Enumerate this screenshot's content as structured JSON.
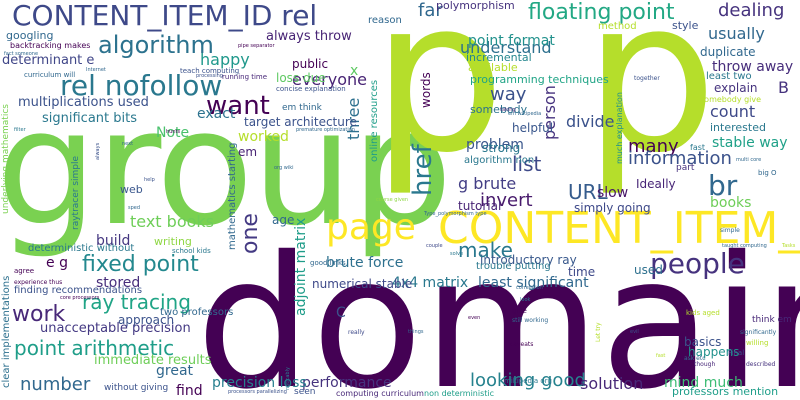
{
  "words": [
    {
      "text": "domain",
      "color": "#440154"
    },
    {
      "text": "group",
      "color": "#7ad151"
    },
    {
      "text": "p",
      "color": "#b5de2b"
    },
    {
      "text": "p",
      "color": "#b5de2b"
    },
    {
      "text": "page",
      "color": "#fde725"
    },
    {
      "text": "CONTENT_ITEM_ID",
      "color": "#fde725"
    },
    {
      "text": "CONTENT_ITEM_ID rel",
      "color": "#3e4989"
    },
    {
      "text": "rel nofollow",
      "color": "#2a788e"
    },
    {
      "text": "algorithm",
      "color": "#2c728e"
    },
    {
      "text": "want",
      "color": "#440154"
    },
    {
      "text": "people",
      "color": "#46327e"
    },
    {
      "text": "br",
      "color": "#31688e"
    },
    {
      "text": "href",
      "color": "#2a788e"
    },
    {
      "text": "fixed point",
      "color": "#23888e"
    },
    {
      "text": "floating point",
      "color": "#22a884"
    },
    {
      "text": "point arithmetic",
      "color": "#1f9e89"
    },
    {
      "text": "work",
      "color": "#482878"
    },
    {
      "text": "ray tracing",
      "color": "#20a486"
    },
    {
      "text": "number",
      "color": "#31688e"
    },
    {
      "text": "list",
      "color": "#3e4989"
    },
    {
      "text": "URL",
      "color": "#365c8d"
    },
    {
      "text": "make",
      "color": "#2a788e"
    },
    {
      "text": "looking good",
      "color": "#26828e"
    },
    {
      "text": "text books",
      "color": "#6ece58"
    },
    {
      "text": "one",
      "color": "#443a83"
    },
    {
      "text": "many",
      "color": "#440154"
    },
    {
      "text": "information",
      "color": "#3b528b"
    },
    {
      "text": "g brute",
      "color": "#433e85"
    },
    {
      "text": "invert",
      "color": "#481a6c"
    },
    {
      "text": "understand",
      "color": "#2d708e"
    },
    {
      "text": "far",
      "color": "#31688e"
    },
    {
      "text": "dealing",
      "color": "#46337e"
    },
    {
      "text": "usually",
      "color": "#31688e"
    },
    {
      "text": "throw away",
      "color": "#472d7b"
    },
    {
      "text": "point format",
      "color": "#21918c"
    },
    {
      "text": "way",
      "color": "#3b528b"
    },
    {
      "text": "person",
      "color": "#46327e"
    },
    {
      "text": "divide",
      "color": "#3b528b"
    },
    {
      "text": "count",
      "color": "#3e4989"
    },
    {
      "text": "everyone",
      "color": "#482475"
    },
    {
      "text": "happy",
      "color": "#1f988b"
    },
    {
      "text": "exact",
      "color": "#2c728e"
    },
    {
      "text": "want",
      "color": "#440154"
    },
    {
      "text": "problem",
      "color": "#39568c"
    },
    {
      "text": "slow",
      "color": "#481668"
    },
    {
      "text": "books",
      "color": "#6ece58"
    },
    {
      "text": "stable way",
      "color": "#1fa188"
    },
    {
      "text": "solution",
      "color": "#482878"
    },
    {
      "text": "mind much",
      "color": "#3dbc74"
    },
    {
      "text": "performance",
      "color": "#46337e"
    },
    {
      "text": "precision loss",
      "color": "#277f8e"
    },
    {
      "text": "stored",
      "color": "#472d7b"
    },
    {
      "text": "brute force",
      "color": "#2d708e"
    },
    {
      "text": "4x4 matrix",
      "color": "#2a788e"
    },
    {
      "text": "introductory ray",
      "color": "#38588c"
    },
    {
      "text": "least significant",
      "color": "#31688e"
    },
    {
      "text": "simply going",
      "color": "#3e4989"
    },
    {
      "text": "Ideally",
      "color": "#482677"
    },
    {
      "text": "build",
      "color": "#453781"
    },
    {
      "text": "e g",
      "color": "#440154"
    },
    {
      "text": "adjoint matrix",
      "color": "#1e9c89"
    },
    {
      "text": "three",
      "color": "#2d708e"
    },
    {
      "text": "x",
      "color": "#5ec962"
    },
    {
      "text": "Note",
      "color": "#4ac16d"
    },
    {
      "text": "great",
      "color": "#31688e"
    },
    {
      "text": "find",
      "color": "#440154"
    },
    {
      "text": "immediate results",
      "color": "#6ece58"
    },
    {
      "text": "unacceptable precision",
      "color": "#443983"
    },
    {
      "text": "multiplications used",
      "color": "#3b528b"
    },
    {
      "text": "significant bits",
      "color": "#2a788e"
    },
    {
      "text": "determinant e",
      "color": "#404688"
    },
    {
      "text": "algorithm non",
      "color": "#2a788e"
    },
    {
      "text": "always throw",
      "color": "#482475"
    },
    {
      "text": "public",
      "color": "#440154"
    },
    {
      "text": "loss due",
      "color": "#5ec962"
    },
    {
      "text": "target architecture",
      "color": "#3b528b"
    },
    {
      "text": "worked",
      "color": "#b5de2b"
    },
    {
      "text": "age",
      "color": "#31688e"
    },
    {
      "text": "tutorial",
      "color": "#482475"
    },
    {
      "text": "helpful",
      "color": "#39568c"
    },
    {
      "text": "strong",
      "color": "#2a788e"
    },
    {
      "text": "time",
      "color": "#3e4989"
    },
    {
      "text": "used",
      "color": "#2d708e"
    },
    {
      "text": "basics",
      "color": "#3b528b"
    },
    {
      "text": "happens",
      "color": "#21918c"
    },
    {
      "text": "professors mention",
      "color": "#1f9e89"
    },
    {
      "text": "B",
      "color": "#46327e"
    },
    {
      "text": "explain",
      "color": "#46337e"
    },
    {
      "text": "interested",
      "color": "#2a788e"
    },
    {
      "text": "duplicate",
      "color": "#31688e"
    },
    {
      "text": "style",
      "color": "#3b528b"
    },
    {
      "text": "method",
      "color": "#b5de2b"
    },
    {
      "text": "least two",
      "color": "#2a788e"
    },
    {
      "text": "programming techniques",
      "color": "#20a486"
    },
    {
      "text": "incremental",
      "color": "#24868e"
    },
    {
      "text": "available",
      "color": "#b5de2b"
    },
    {
      "text": "polymorphism",
      "color": "#46337e"
    },
    {
      "text": "reason",
      "color": "#31688e"
    },
    {
      "text": "somebody",
      "color": "#2c728e"
    },
    {
      "text": "online resources",
      "color": "#1f9e89"
    },
    {
      "text": "words",
      "color": "#440154"
    },
    {
      "text": "raytracer simple",
      "color": "#2a788e"
    },
    {
      "text": "web",
      "color": "#39568c"
    },
    {
      "text": "writing",
      "color": "#8fd744"
    },
    {
      "text": "mathematics starting",
      "color": "#31688e"
    },
    {
      "text": "em",
      "color": "#482475"
    },
    {
      "text": "deterministic without",
      "color": "#2a788e"
    },
    {
      "text": "finding recommendations",
      "color": "#3b528b"
    },
    {
      "text": "two professors",
      "color": "#31688e"
    },
    {
      "text": "approach",
      "color": "#3b528b"
    },
    {
      "text": "numerical stable",
      "color": "#3e4989"
    },
    {
      "text": "C",
      "color": "#3b528b"
    },
    {
      "text": "trouble putting",
      "color": "#2a788e"
    },
    {
      "text": "clear implementations",
      "color": "#2d708e"
    },
    {
      "text": "underlying mathematics",
      "color": "#7ad151"
    },
    {
      "text": "googling",
      "color": "#31688e"
    },
    {
      "text": "backtracking makes",
      "color": "#440154"
    },
    {
      "text": "curriculum will",
      "color": "#31688e"
    },
    {
      "text": "em think",
      "color": "#31688e"
    },
    {
      "text": "without giving",
      "color": "#3b528b"
    },
    {
      "text": "seen",
      "color": "#3b528b"
    },
    {
      "text": "computing curriculum",
      "color": "#482878"
    },
    {
      "text": "non deterministic",
      "color": "#1f9e89"
    },
    {
      "text": "mikipedia org",
      "color": "#2a788e"
    },
    {
      "text": "think em",
      "color": "#482878"
    },
    {
      "text": "somebody give",
      "color": "#b5de2b"
    },
    {
      "text": "much explanation",
      "color": "#21918c"
    },
    {
      "text": "fast",
      "color": "#2a788e"
    },
    {
      "text": "big O",
      "color": "#31688e"
    },
    {
      "text": "part",
      "color": "#46327e"
    },
    {
      "text": "teach computing",
      "color": "#3b528b"
    },
    {
      "text": "running time",
      "color": "#482878"
    },
    {
      "text": "concise explanation",
      "color": "#3b528b"
    },
    {
      "text": "good links",
      "color": "#31688e"
    },
    {
      "text": "school kids",
      "color": "#2a788e"
    },
    {
      "text": "agree",
      "color": "#440154"
    },
    {
      "text": "experience thus",
      "color": "#440154"
    },
    {
      "text": "kids aged",
      "color": "#b5de2b"
    },
    {
      "text": "significantly",
      "color": "#31688e"
    },
    {
      "text": "willing",
      "color": "#b5de2b"
    },
    {
      "text": "ask etc",
      "color": "#31688e"
    },
    {
      "text": "Final",
      "color": "#3b528b"
    },
    {
      "text": "give",
      "color": "#440154"
    },
    {
      "text": "still working",
      "color": "#31688e"
    },
    {
      "text": "caveats",
      "color": "#440154"
    },
    {
      "text": "Type_polymorphism type",
      "color": "#31688e"
    },
    {
      "text": "together",
      "color": "#3b528b"
    },
    {
      "text": "simple",
      "color": "#31688e"
    },
    {
      "text": "described",
      "color": "#46327e"
    },
    {
      "text": "though",
      "color": "#482878"
    },
    {
      "text": "really",
      "color": "#3e4989"
    },
    {
      "text": "course given",
      "color": "#8fd744"
    },
    {
      "text": "em wikipedia",
      "color": "#31688e"
    },
    {
      "text": "pipe separator",
      "color": "#440154"
    },
    {
      "text": "processing",
      "color": "#3b528b"
    },
    {
      "text": "org wiki",
      "color": "#31688e"
    },
    {
      "text": "taking",
      "color": "#31688e"
    },
    {
      "text": "multi core",
      "color": "#482878"
    },
    {
      "text": "fact someone",
      "color": "#31688e"
    },
    {
      "text": "Internet",
      "color": "#31688e"
    },
    {
      "text": "next",
      "color": "#31688e"
    },
    {
      "text": "help",
      "color": "#31688e"
    },
    {
      "text": "sped",
      "color": "#3b528b"
    },
    {
      "text": "filter",
      "color": "#31688e"
    },
    {
      "text": "hunts",
      "color": "#2a788e"
    },
    {
      "text": "always",
      "color": "#440154"
    },
    {
      "text": "premature optimization",
      "color": "#3b528b"
    },
    {
      "text": "noticably",
      "color": "#31688e"
    },
    {
      "text": "processors parallelizing",
      "color": "#2a788e"
    },
    {
      "text": "core processors",
      "color": "#3b528b"
    },
    {
      "text": "look",
      "color": "#440154"
    },
    {
      "text": "even",
      "color": "#2a788e"
    },
    {
      "text": "evil",
      "color": "#440154"
    },
    {
      "text": "Let try",
      "color": "#3b528b"
    },
    {
      "text": "taught computing",
      "color": "#b5de2b"
    },
    {
      "text": "Tasks",
      "color": "#31688e"
    },
    {
      "text": "solve",
      "color": "#b5de2b"
    },
    {
      "text": "couple",
      "color": "#2a788e"
    },
    {
      "text": "correlation",
      "color": "#3e4989"
    },
    {
      "text": "things",
      "color": "#31688e"
    },
    {
      "text": "speed",
      "color": "#31688e"
    },
    {
      "text": "fast",
      "color": "#2a788e"
    },
    {
      "text": "hours",
      "color": "#b5de2b"
    }
  ]
}
